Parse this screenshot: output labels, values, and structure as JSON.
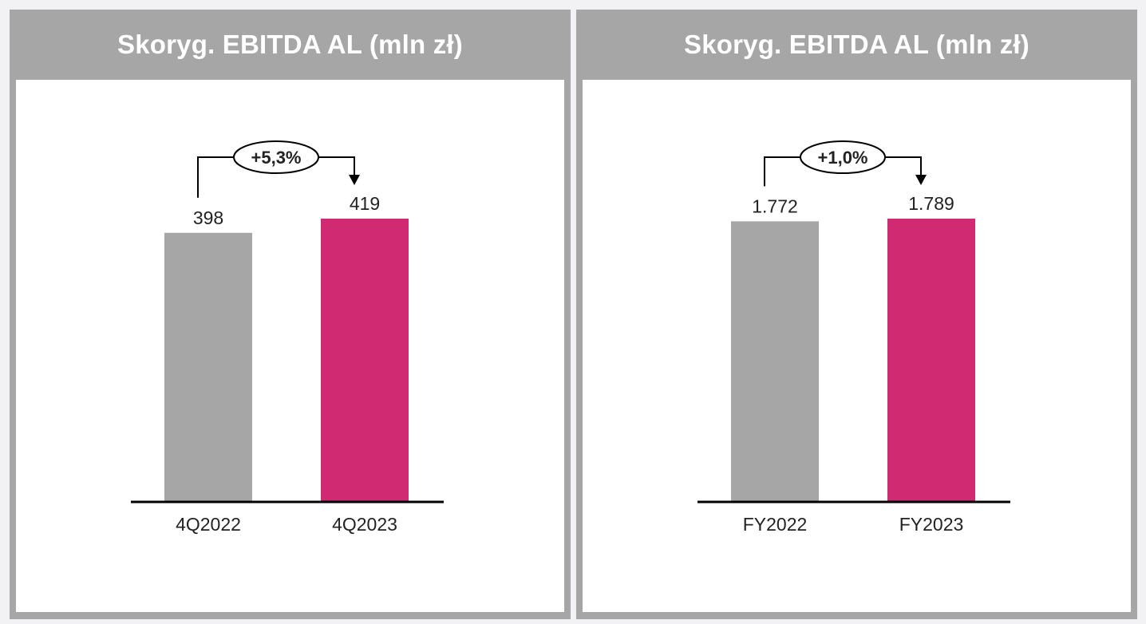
{
  "colors": {
    "panel_frame": "#a6a6a6",
    "bar_prior": "#a6a6a6",
    "bar_current": "#d02a72",
    "axis": "#000000",
    "text": "#222222",
    "header_text": "#ffffff"
  },
  "chart_data": [
    {
      "type": "bar",
      "title": "Skoryg. EBITDA AL (mln zł)",
      "categories": [
        "4Q2022",
        "4Q2023"
      ],
      "values": [
        398,
        419
      ],
      "value_labels": [
        "398",
        "419"
      ],
      "change_label": "+5,3%",
      "ylim": [
        0,
        419
      ],
      "grid": false,
      "legend": "none"
    },
    {
      "type": "bar",
      "title": "Skoryg. EBITDA AL (mln zł)",
      "categories": [
        "FY2022",
        "FY2023"
      ],
      "values": [
        1772,
        1789
      ],
      "value_labels": [
        "1.772",
        "1.789"
      ],
      "change_label": "+1,0%",
      "ylim": [
        0,
        1789
      ],
      "grid": false,
      "legend": "none"
    }
  ]
}
